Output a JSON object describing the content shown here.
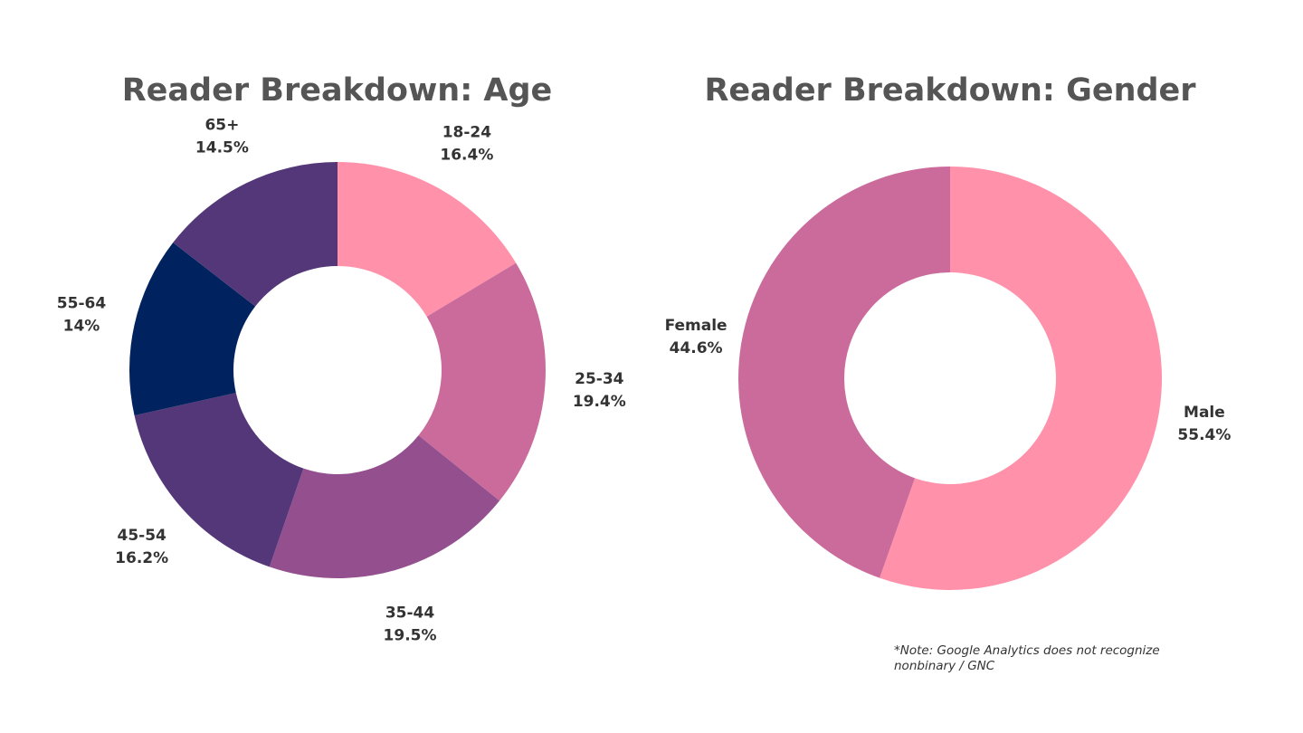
{
  "chart_data": [
    {
      "type": "pie",
      "title": "Reader Breakdown: Age",
      "categories": [
        "18-24",
        "25-34",
        "35-44",
        "45-54",
        "55-64",
        "65+"
      ],
      "values": [
        16.4,
        19.4,
        19.5,
        16.2,
        14,
        14.5
      ],
      "value_labels": [
        "16.4%",
        "19.4%",
        "19.5%",
        "16.2%",
        "14%",
        "14.5%"
      ],
      "colors": [
        "#ff91aa",
        "#cb6b9b",
        "#934f8e",
        "#533779",
        "#00225f",
        "#533779"
      ],
      "donut": true
    },
    {
      "type": "pie",
      "title": "Reader Breakdown: Gender",
      "categories": [
        "Male",
        "Female"
      ],
      "values": [
        55.4,
        44.6
      ],
      "value_labels": [
        "55.4%",
        "44.6%"
      ],
      "colors": [
        "#ff91aa",
        "#cb6b9b"
      ],
      "donut": true
    }
  ],
  "note": {
    "line1": "*Note: Google Analytics does not recognize",
    "line2": "nonbinary / GNC"
  }
}
